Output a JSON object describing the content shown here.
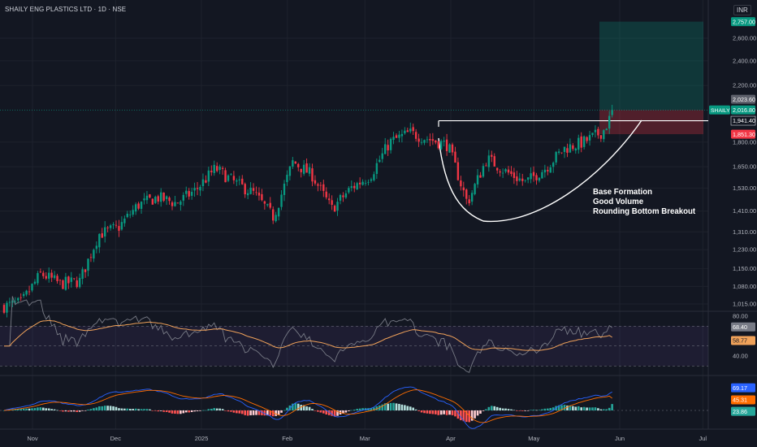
{
  "chart_data": [
    {
      "type": "candlestick",
      "title": "SHAILY ENG PLASTICS LTD · 1D · NSE",
      "unit": "INR",
      "y_ticks": [
        "2,600.00",
        "2,400.00",
        "2,200.00",
        "1,800.00",
        "1,650.00",
        "1,530.00",
        "1,410.00",
        "1,310.00",
        "1,230.00",
        "1,150.00",
        "1,080.00",
        "1,015.00"
      ],
      "x_ticks": [
        "Nov",
        "Dec",
        "2025",
        "Feb",
        "Mar",
        "Apr",
        "May",
        "Jun",
        "Jul"
      ],
      "ylim": [
        990,
        2900
      ],
      "y_scale": "log",
      "price_labels": {
        "target": "2,757.00",
        "last_close": "2,023.60",
        "symbol": "SHAILY",
        "current": "2,016.80",
        "breakout": "1,941.40",
        "stop": "1,851.30"
      },
      "levels": {
        "target": 2757,
        "last": 2016.8,
        "breakout": 1941.4,
        "stop": 1851.3
      },
      "annotations": [
        "Base Formation",
        "Good Volume",
        "Rounding Bottom Breakout"
      ],
      "approx_closes": [
        {
          "date": "2024-10-21",
          "close": 1005
        },
        {
          "date": "2024-10-28",
          "close": 1020
        },
        {
          "date": "2024-11-04",
          "close": 1130
        },
        {
          "date": "2024-11-11",
          "close": 1090
        },
        {
          "date": "2024-11-18",
          "close": 1100
        },
        {
          "date": "2024-11-25",
          "close": 1300
        },
        {
          "date": "2024-12-02",
          "close": 1330
        },
        {
          "date": "2024-12-09",
          "close": 1440
        },
        {
          "date": "2024-12-16",
          "close": 1480
        },
        {
          "date": "2024-12-23",
          "close": 1450
        },
        {
          "date": "2024-12-30",
          "close": 1520
        },
        {
          "date": "2025-01-06",
          "close": 1640
        },
        {
          "date": "2025-01-13",
          "close": 1560
        },
        {
          "date": "2025-01-20",
          "close": 1500
        },
        {
          "date": "2025-01-27",
          "close": 1380
        },
        {
          "date": "2025-02-03",
          "close": 1680
        },
        {
          "date": "2025-02-10",
          "close": 1600
        },
        {
          "date": "2025-02-17",
          "close": 1420
        },
        {
          "date": "2025-02-24",
          "close": 1530
        },
        {
          "date": "2025-03-03",
          "close": 1600
        },
        {
          "date": "2025-03-10",
          "close": 1800
        },
        {
          "date": "2025-03-17",
          "close": 1860
        },
        {
          "date": "2025-03-24",
          "close": 1820
        },
        {
          "date": "2025-03-31",
          "close": 1780
        },
        {
          "date": "2025-04-07",
          "close": 1450
        },
        {
          "date": "2025-04-14",
          "close": 1700
        },
        {
          "date": "2025-04-21",
          "close": 1620
        },
        {
          "date": "2025-04-28",
          "close": 1560
        },
        {
          "date": "2025-05-05",
          "close": 1640
        },
        {
          "date": "2025-05-12",
          "close": 1760
        },
        {
          "date": "2025-05-19",
          "close": 1800
        },
        {
          "date": "2025-05-26",
          "close": 1870
        },
        {
          "date": "2025-05-30",
          "close": 2016.8
        }
      ]
    },
    {
      "type": "line",
      "title": "RSI",
      "y_ticks": [
        "80.00",
        "40.00"
      ],
      "series": [
        {
          "color": "#787b86",
          "last": "68.40"
        },
        {
          "color": "#f0a25a",
          "last": "58.77"
        }
      ]
    },
    {
      "type": "bar",
      "title": "MACD",
      "y_ticks": [
        "0.00"
      ],
      "labels": [
        "69.17",
        "45.31",
        "23.86"
      ],
      "series": [
        {
          "color": "#2962ff",
          "last": "69.17"
        },
        {
          "color": "#ff6d00",
          "last": "45.31"
        },
        {
          "color": "#26a69a",
          "last": "23.86"
        }
      ]
    }
  ]
}
